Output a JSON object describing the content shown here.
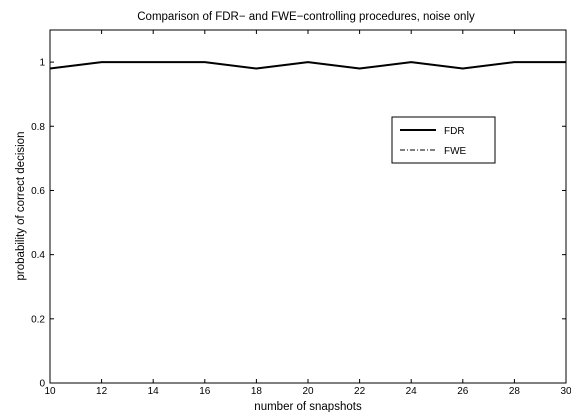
{
  "chart_data": {
    "type": "line",
    "title": "Comparison of FDR− and FWE−controlling procedures, noise only",
    "xlabel": "number of snapshots",
    "ylabel": "probability of correct decision",
    "xlim": [
      10,
      30
    ],
    "ylim": [
      0,
      1.1
    ],
    "xticks": [
      10,
      12,
      14,
      16,
      18,
      20,
      22,
      24,
      26,
      28,
      30
    ],
    "yticks": [
      0,
      0.2,
      0.4,
      0.6,
      0.8,
      1
    ],
    "ytick_labels": [
      "0",
      "0.2",
      "0.4",
      "0.6",
      "0.8",
      "1"
    ],
    "grid": false,
    "legend_position": "right",
    "x": [
      10,
      12,
      14,
      16,
      18,
      20,
      22,
      24,
      26,
      28,
      30
    ],
    "series": [
      {
        "name": "FDR",
        "style": "solid",
        "color": "#000000",
        "values": [
          0.98,
          1.0,
          1.0,
          1.0,
          0.98,
          1.0,
          0.98,
          1.0,
          0.98,
          1.0,
          1.0
        ]
      },
      {
        "name": "FWE",
        "style": "dashdot",
        "color": "#000000",
        "values": [
          0.98,
          1.0,
          1.0,
          1.0,
          0.98,
          1.0,
          0.98,
          1.0,
          0.98,
          1.0,
          1.0
        ]
      }
    ]
  }
}
